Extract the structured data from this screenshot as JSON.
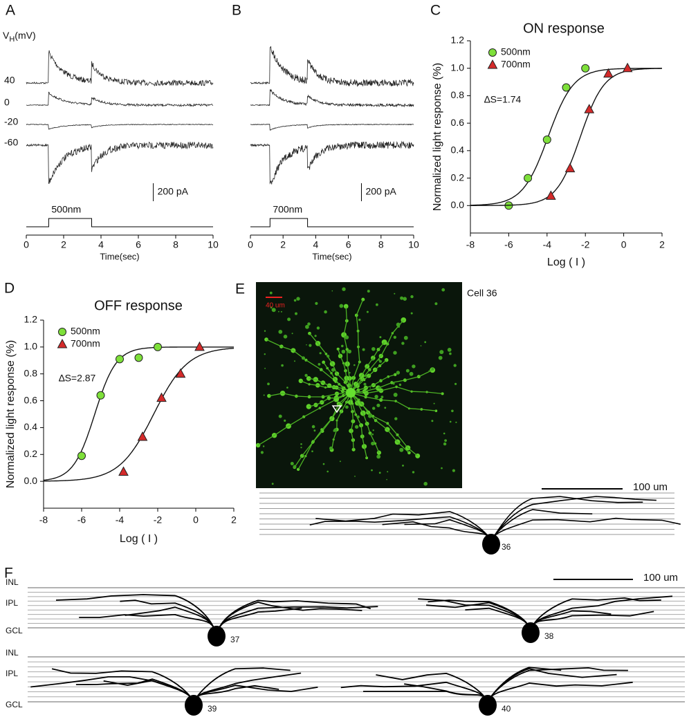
{
  "chart_data": [
    {
      "type": "trace",
      "panel_label": "A",
      "holding_axis_label": {
        "main": "V",
        "sub": "H",
        "unit": "(mV)"
      },
      "holding_potentials": [
        40,
        0,
        -20,
        -60
      ],
      "scale_bar_label": "200 pA",
      "stimulus_label": "500nm",
      "stimulus": [
        1.2,
        3.5
      ],
      "x_label": "Time(sec)",
      "xlim": [
        0,
        10
      ],
      "xticks": [
        0,
        2,
        4,
        6,
        8,
        10
      ]
    },
    {
      "type": "trace",
      "panel_label": "B",
      "scale_bar_label": "200 pA",
      "stimulus_label": "700nm",
      "stimulus": [
        1.2,
        3.5
      ],
      "x_label": "Time(sec)",
      "xlim": [
        0,
        10
      ],
      "xticks": [
        0,
        2,
        4,
        6,
        8,
        10
      ]
    },
    {
      "type": "scatter",
      "panel_label": "C",
      "title": "ON response",
      "x_label": "Log ( I )",
      "y_label": "Normalized light response (%)",
      "annotation": "∆S=1.74",
      "xlim": [
        -8,
        2
      ],
      "xticks": [
        -8,
        -6,
        -4,
        -2,
        0,
        2
      ],
      "ylim": [
        -0.2,
        1.2
      ],
      "yticks": [
        {
          "value": 0,
          "label": "0.0"
        },
        0.2,
        0.4,
        0.6,
        0.8,
        {
          "value": 1,
          "label": "1.0"
        },
        1.2
      ],
      "series": [
        {
          "name": "500nm",
          "color": "#7ee03a",
          "marker": "circle",
          "x": [
            -6,
            -5,
            -4,
            -3,
            -2
          ],
          "values": [
            0.0,
            0.2,
            0.48,
            0.86,
            1.0
          ]
        },
        {
          "name": "700nm",
          "color": "#d42a2a",
          "marker": "triangle",
          "x": [
            -3.8,
            -2.8,
            -1.8,
            -0.8,
            0.2
          ],
          "values": [
            0.07,
            0.27,
            0.7,
            0.96,
            1.0
          ]
        }
      ]
    },
    {
      "type": "scatter",
      "panel_label": "D",
      "title": "OFF response",
      "x_label": "Log ( I )",
      "y_label": "Normalized light response (%)",
      "annotation": "∆S=2.87",
      "xlim": [
        -8,
        2
      ],
      "xticks": [
        -8,
        -6,
        -4,
        -2,
        0,
        2
      ],
      "ylim": [
        -0.2,
        1.2
      ],
      "yticks": [
        {
          "value": 0,
          "label": "0.0"
        },
        0.2,
        0.4,
        0.6,
        0.8,
        {
          "value": 1,
          "label": "1.0"
        },
        1.2
      ],
      "series": [
        {
          "name": "500nm",
          "color": "#7ee03a",
          "marker": "circle",
          "x": [
            -6,
            -5,
            -4,
            -3,
            -2
          ],
          "values": [
            0.19,
            0.64,
            0.91,
            0.92,
            1.0
          ]
        },
        {
          "name": "700nm",
          "color": "#d42a2a",
          "marker": "triangle",
          "x": [
            -3.8,
            -2.8,
            -1.8,
            -0.8,
            0.2
          ],
          "values": [
            0.07,
            0.33,
            0.62,
            0.8,
            1.0
          ]
        }
      ]
    }
  ],
  "panel_e": {
    "panel_label": "E",
    "cell_label": "Cell 36",
    "image_scale_label": "40 um",
    "scale_label": "100 um",
    "soma_label": "36"
  },
  "panel_f": {
    "panel_label": "F",
    "scale_label": "100 um",
    "rows": [
      {
        "layers": [
          "INL",
          "IPL",
          "GCL"
        ],
        "cells": [
          "37",
          "38"
        ]
      },
      {
        "layers": [
          "INL",
          "IPL",
          "GCL"
        ],
        "cells": [
          "39",
          "40"
        ]
      }
    ]
  }
}
